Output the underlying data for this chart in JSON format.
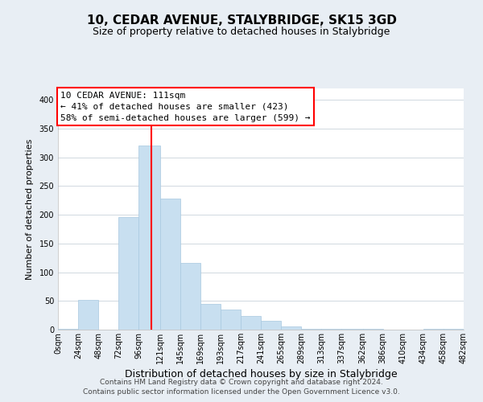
{
  "title": "10, CEDAR AVENUE, STALYBRIDGE, SK15 3GD",
  "subtitle": "Size of property relative to detached houses in Stalybridge",
  "xlabel": "Distribution of detached houses by size in Stalybridge",
  "ylabel": "Number of detached properties",
  "bar_color": "#c8dff0",
  "bar_edge_color": "#a8c8e0",
  "vline_x": 111,
  "vline_color": "red",
  "annotation_title": "10 CEDAR AVENUE: 111sqm",
  "annotation_line1": "← 41% of detached houses are smaller (423)",
  "annotation_line2": "58% of semi-detached houses are larger (599) →",
  "annotation_box_facecolor": "white",
  "annotation_box_edgecolor": "red",
  "bins": [
    0,
    24,
    48,
    72,
    96,
    121,
    145,
    169,
    193,
    217,
    241,
    265,
    289,
    313,
    337,
    362,
    386,
    410,
    434,
    458,
    482
  ],
  "bin_labels": [
    "0sqm",
    "24sqm",
    "48sqm",
    "72sqm",
    "96sqm",
    "121sqm",
    "145sqm",
    "169sqm",
    "193sqm",
    "217sqm",
    "241sqm",
    "265sqm",
    "289sqm",
    "313sqm",
    "337sqm",
    "362sqm",
    "386sqm",
    "410sqm",
    "434sqm",
    "458sqm",
    "482sqm"
  ],
  "bar_heights": [
    2,
    52,
    0,
    196,
    320,
    228,
    116,
    45,
    35,
    24,
    15,
    6,
    2,
    1,
    1,
    1,
    0,
    0,
    1,
    1
  ],
  "ylim": [
    0,
    420
  ],
  "xlim": [
    0,
    482
  ],
  "yticks": [
    0,
    50,
    100,
    150,
    200,
    250,
    300,
    350,
    400
  ],
  "background_color": "#e8eef4",
  "plot_background": "white",
  "title_fontsize": 11,
  "subtitle_fontsize": 9,
  "xlabel_fontsize": 9,
  "ylabel_fontsize": 8,
  "tick_fontsize": 7,
  "footer_fontsize": 6.5,
  "footer1": "Contains HM Land Registry data © Crown copyright and database right 2024.",
  "footer2": "Contains public sector information licensed under the Open Government Licence v3.0.",
  "grid_color": "#d0d8e0",
  "annotation_fontsize": 8
}
